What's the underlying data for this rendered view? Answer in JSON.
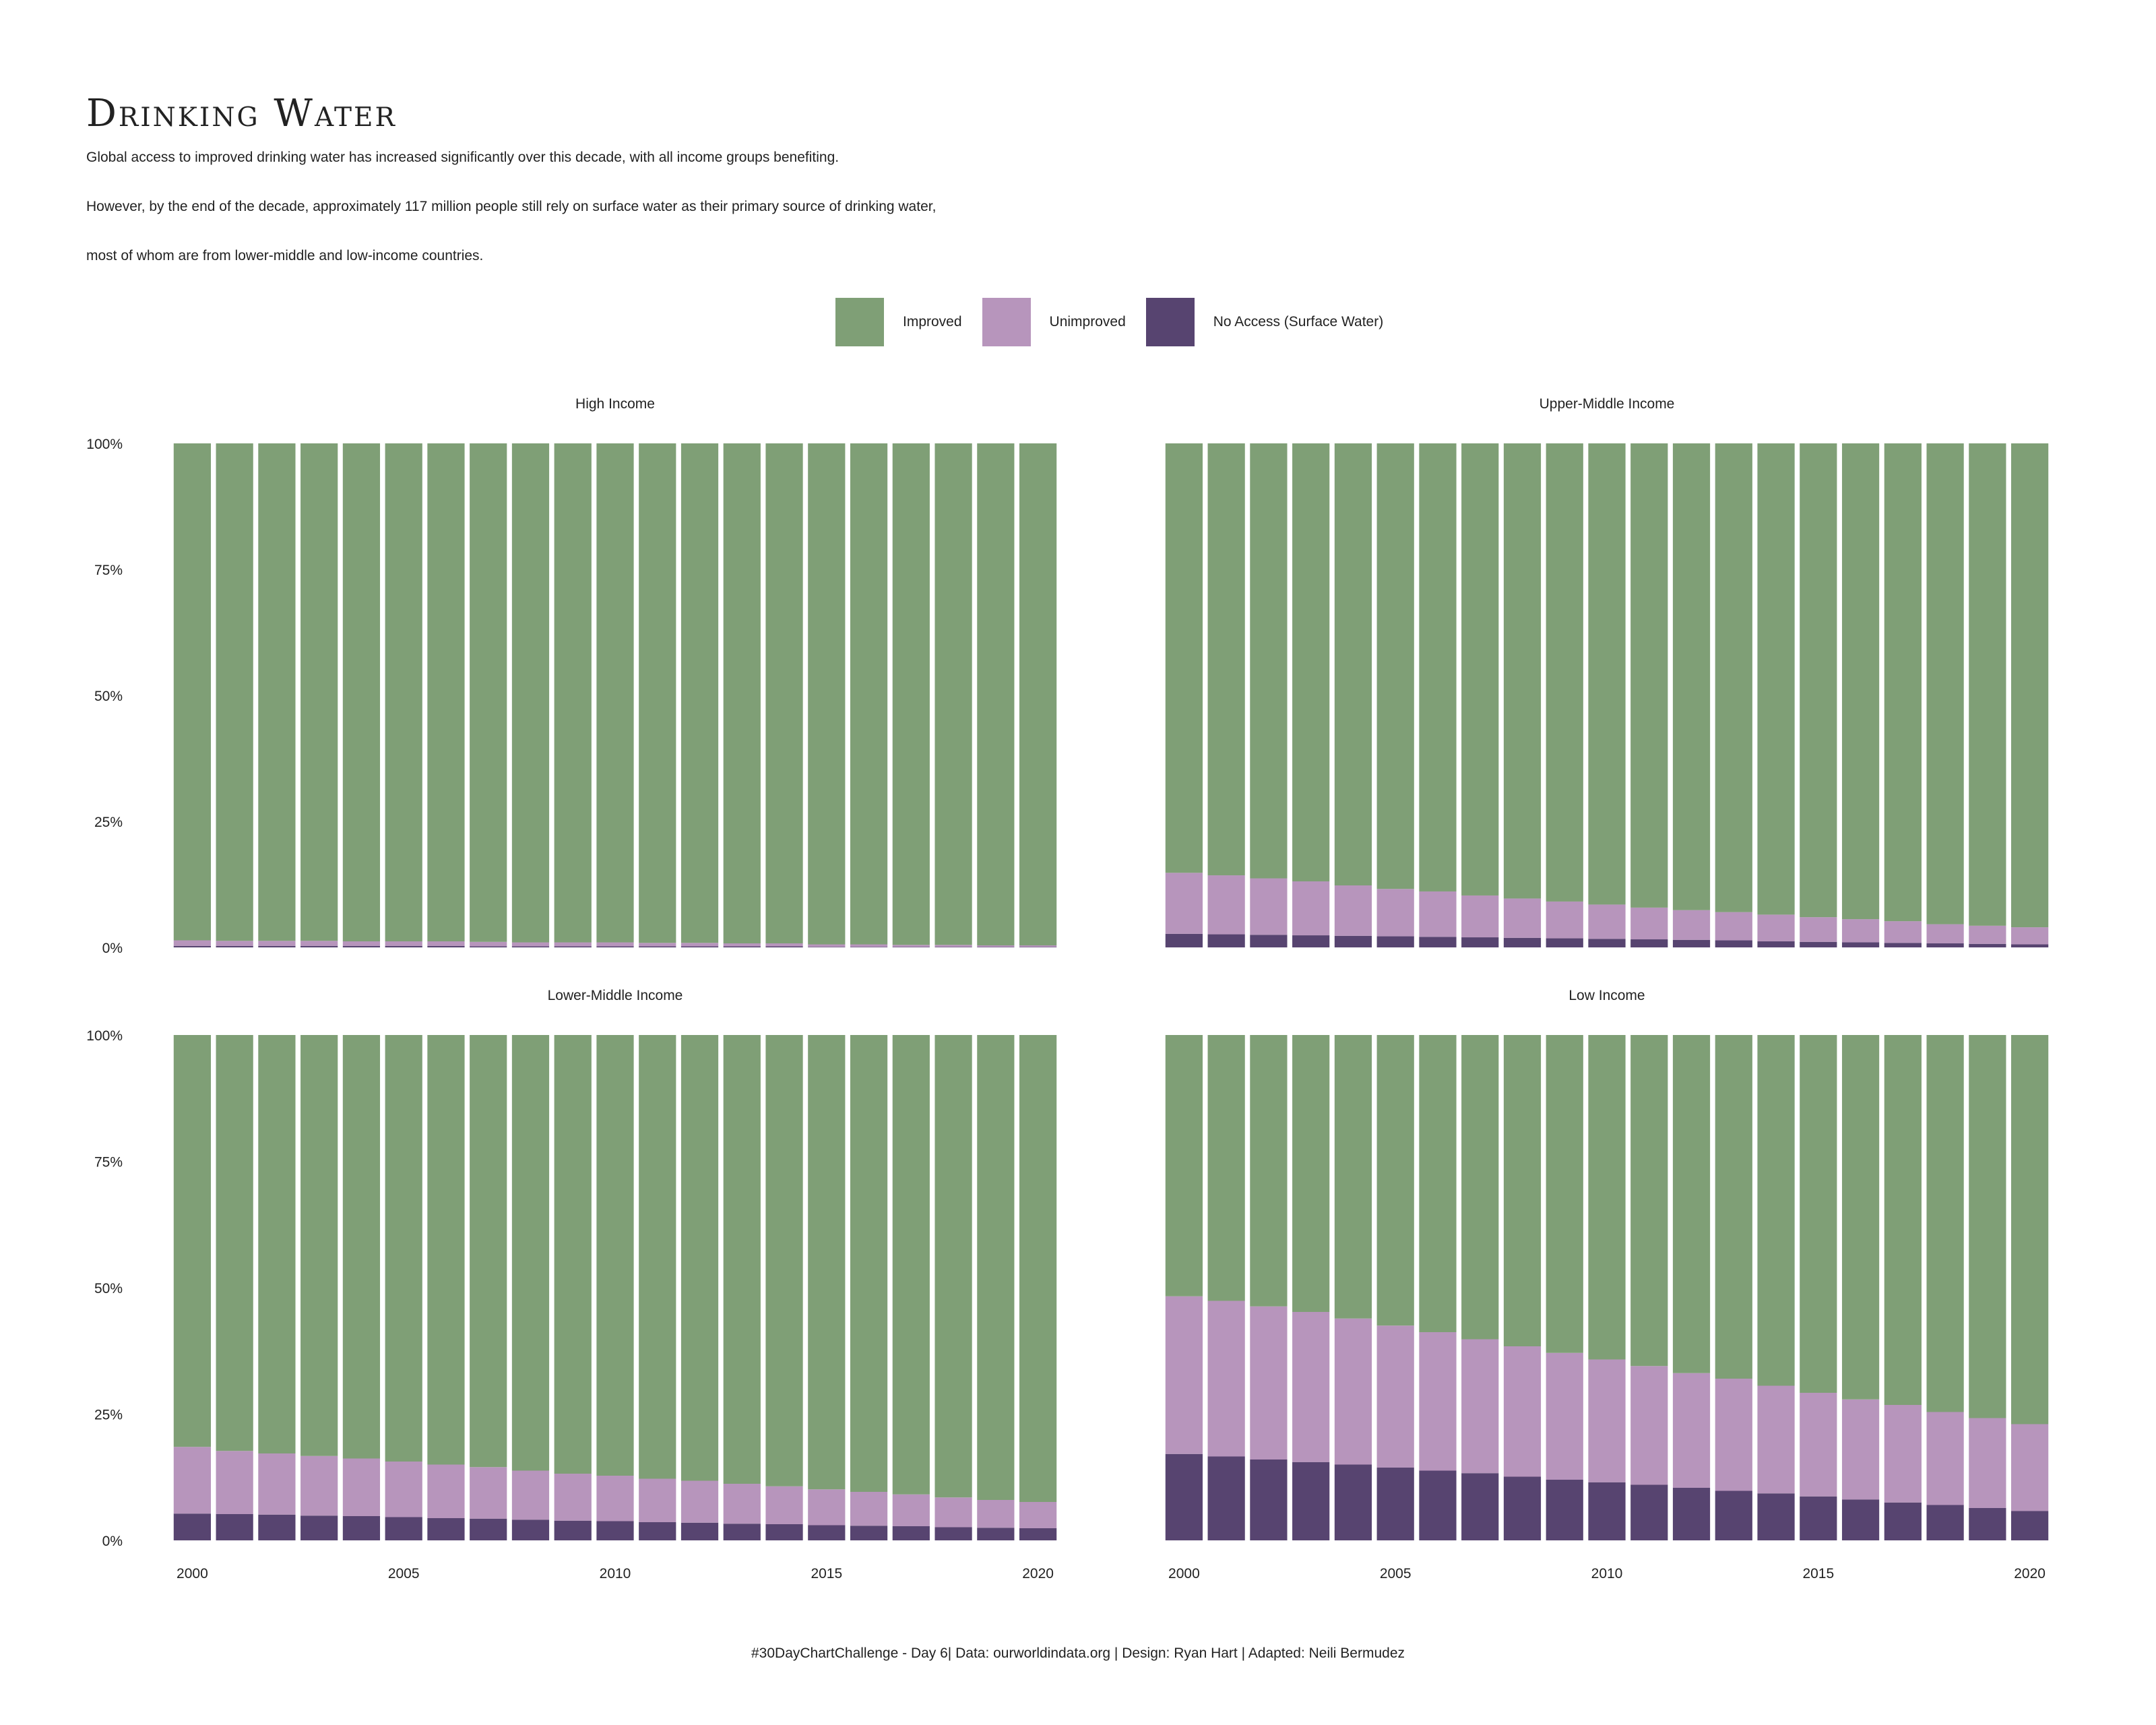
{
  "header": {
    "title": "Drinking Water",
    "subtitle_lines": [
      "Global access to improved drinking water has increased significantly over this decade, with all income groups benefiting.",
      "However, by the end of the decade, approximately 117 million people still rely on surface water as their primary source of drinking water,",
      "most of whom are from lower-middle and low-income countries."
    ]
  },
  "legend": [
    {
      "label": "Improved",
      "color": "#7f9f76"
    },
    {
      "label": "Unimproved",
      "color": "#b795bc"
    },
    {
      "label": "No Access (Surface Water)",
      "color": "#574470"
    }
  ],
  "caption": "#30DayChartChallenge - Day 6| Data: ourworldindata.org | Design: Ryan Hart | Adapted: Neili Bermudez",
  "chart_data": {
    "type": "bar",
    "stacked": true,
    "categories": [
      2000,
      2001,
      2002,
      2003,
      2004,
      2005,
      2006,
      2007,
      2008,
      2009,
      2010,
      2011,
      2012,
      2013,
      2014,
      2015,
      2016,
      2017,
      2018,
      2019,
      2020
    ],
    "x_tick_labels": [
      "2000",
      "2005",
      "2010",
      "2015",
      "2020"
    ],
    "y_tick_labels": [
      "0%",
      "25%",
      "50%",
      "75%",
      "100%"
    ],
    "ylim": [
      0,
      100
    ],
    "panels": [
      {
        "name": "High Income",
        "series": [
          {
            "name": "No Access (Surface Water)",
            "values": [
              0.3,
              0.3,
              0.3,
              0.3,
              0.3,
              0.3,
              0.3,
              0.2,
              0.2,
              0.2,
              0.2,
              0.2,
              0.2,
              0.2,
              0.2,
              0.1,
              0.1,
              0.1,
              0.1,
              0.1,
              0.1
            ]
          },
          {
            "name": "Unimproved",
            "values": [
              1.1,
              1.0,
              1.0,
              1.0,
              0.9,
              0.9,
              0.9,
              0.9,
              0.8,
              0.8,
              0.8,
              0.7,
              0.7,
              0.6,
              0.6,
              0.5,
              0.5,
              0.4,
              0.4,
              0.3,
              0.3
            ]
          },
          {
            "name": "Improved",
            "values": [
              98.6,
              98.7,
              98.7,
              98.7,
              98.8,
              98.8,
              98.8,
              98.9,
              99.0,
              99.0,
              99.0,
              99.1,
              99.1,
              99.2,
              99.2,
              99.4,
              99.4,
              99.5,
              99.5,
              99.6,
              99.6
            ]
          }
        ]
      },
      {
        "name": "Upper-Middle Income",
        "series": [
          {
            "name": "No Access (Surface Water)",
            "values": [
              2.7,
              2.6,
              2.5,
              2.4,
              2.3,
              2.2,
              2.1,
              2.0,
              1.9,
              1.8,
              1.7,
              1.6,
              1.5,
              1.4,
              1.2,
              1.1,
              1.0,
              0.9,
              0.8,
              0.7,
              0.6
            ]
          },
          {
            "name": "Unimproved",
            "values": [
              12.1,
              11.7,
              11.2,
              10.7,
              10.0,
              9.4,
              9.0,
              8.3,
              7.8,
              7.3,
              6.8,
              6.3,
              5.9,
              5.6,
              5.3,
              4.9,
              4.6,
              4.3,
              3.8,
              3.6,
              3.4
            ]
          },
          {
            "name": "Improved",
            "values": [
              85.2,
              85.7,
              86.3,
              86.9,
              87.7,
              88.4,
              88.9,
              89.7,
              90.3,
              90.9,
              91.5,
              92.1,
              92.6,
              93.0,
              93.5,
              94.0,
              94.4,
              94.8,
              95.4,
              95.7,
              96.0
            ]
          }
        ]
      },
      {
        "name": "Lower-Middle Income",
        "series": [
          {
            "name": "No Access (Surface Water)",
            "values": [
              5.3,
              5.2,
              5.1,
              4.9,
              4.8,
              4.6,
              4.4,
              4.3,
              4.1,
              3.9,
              3.8,
              3.6,
              3.5,
              3.3,
              3.2,
              3.0,
              2.9,
              2.8,
              2.6,
              2.5,
              2.4
            ]
          },
          {
            "name": "Unimproved",
            "values": [
              13.2,
              12.5,
              12.1,
              11.8,
              11.4,
              11.0,
              10.6,
              10.2,
              9.7,
              9.3,
              9.0,
              8.6,
              8.3,
              7.9,
              7.5,
              7.1,
              6.7,
              6.3,
              5.9,
              5.5,
              5.2
            ]
          },
          {
            "name": "Improved",
            "values": [
              81.5,
              82.3,
              82.8,
              83.3,
              83.8,
              84.4,
              85.0,
              85.5,
              86.2,
              86.8,
              87.2,
              87.8,
              88.2,
              88.8,
              89.3,
              89.9,
              90.4,
              90.9,
              91.5,
              92.0,
              92.4
            ]
          }
        ]
      },
      {
        "name": "Low Income",
        "series": [
          {
            "name": "No Access (Surface Water)",
            "values": [
              17.1,
              16.6,
              16.0,
              15.5,
              15.0,
              14.4,
              13.8,
              13.3,
              12.6,
              12.0,
              11.5,
              11.0,
              10.4,
              9.8,
              9.3,
              8.7,
              8.1,
              7.5,
              7.0,
              6.4,
              5.8
            ]
          },
          {
            "name": "Unimproved",
            "values": [
              31.2,
              30.8,
              30.3,
              29.7,
              28.9,
              28.1,
              27.4,
              26.5,
              25.8,
              25.1,
              24.3,
              23.5,
              22.7,
              22.2,
              21.3,
              20.5,
              19.8,
              19.3,
              18.4,
              17.8,
              17.2
            ]
          },
          {
            "name": "Improved",
            "values": [
              51.7,
              52.6,
              53.7,
              54.8,
              56.1,
              57.5,
              58.8,
              60.2,
              61.6,
              62.9,
              64.2,
              65.5,
              66.9,
              68.0,
              69.4,
              70.8,
              72.1,
              73.2,
              74.6,
              75.8,
              77.0
            ]
          }
        ]
      }
    ]
  }
}
